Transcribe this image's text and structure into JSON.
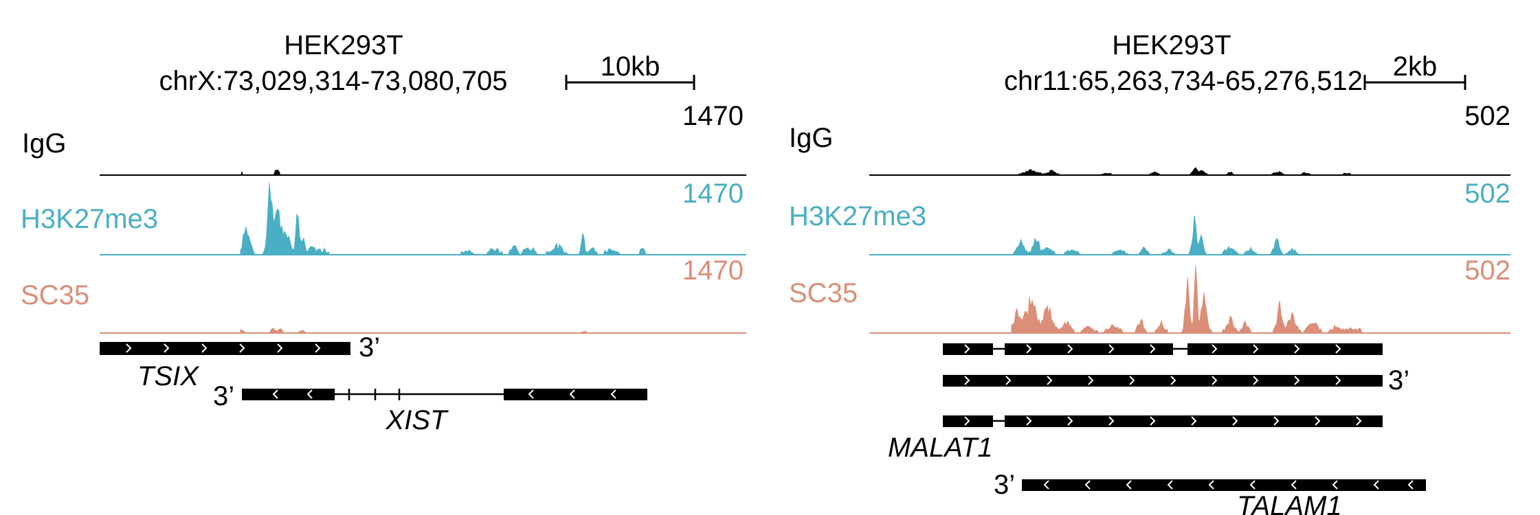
{
  "colors": {
    "igg": "#000000",
    "h3k27me3": "#4AAFC4",
    "sc35": "#DB8E78",
    "gene": "#000000"
  },
  "panels": [
    {
      "cell_line": "HEK293T",
      "region": "chrX:73,029,314-73,080,705",
      "scale_bar_label": "10kb",
      "tracks": [
        {
          "name": "IgG",
          "max_label": "1470",
          "color_key": "igg"
        },
        {
          "name": "H3K27me3",
          "max_label": "1470",
          "color_key": "h3k27me3"
        },
        {
          "name": "SC35",
          "max_label": "1470",
          "color_key": "sc35"
        }
      ],
      "genes": [
        {
          "name": "TSIX",
          "end_label": "3’",
          "strand": "+",
          "italic": true
        },
        {
          "name": "XIST",
          "end_label": "3’",
          "strand": "-",
          "italic": true
        }
      ]
    },
    {
      "cell_line": "HEK293T",
      "region": "chr11:65,263,734-65,276,512",
      "scale_bar_label": "2kb",
      "tracks": [
        {
          "name": "IgG",
          "max_label": "502",
          "color_key": "igg"
        },
        {
          "name": "H3K27me3",
          "max_label": "502",
          "color_key": "h3k27me3"
        },
        {
          "name": "SC35",
          "max_label": "502",
          "color_key": "sc35"
        }
      ],
      "genes": [
        {
          "name": "MALAT1",
          "end_label": "3’",
          "strand": "+",
          "italic": true,
          "isoforms": 3
        },
        {
          "name": "TALAM1",
          "end_label": "3’",
          "strand": "-",
          "italic": true
        }
      ]
    }
  ]
}
